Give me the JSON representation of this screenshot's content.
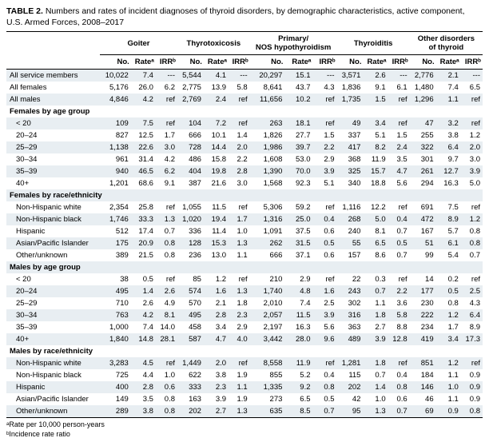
{
  "title_prefix": "TABLE 2.",
  "title_rest": " Numbers and rates of incident diagnoses of thyroid disorders, by demographic characteristics, active component, U.S. Armed Forces, 2008–2017",
  "groups": [
    "Goiter",
    "Thyrotoxicosis",
    "Primary/\nNOS hypothyroidism",
    "Thyroiditis",
    "Other disorders\nof thyroid"
  ],
  "cols": [
    "No.",
    "Rateᵃ",
    "IRRᵇ"
  ],
  "footnote_a": "ᵃRate per 10,000 person-years",
  "footnote_b": "ᵇIncidence rate ratio",
  "rows": [
    {
      "type": "data",
      "shade": 1,
      "label": "All service members",
      "cells": [
        "10,022",
        "7.4",
        "---",
        "5,544",
        "4.1",
        "---",
        "20,297",
        "15.1",
        "---",
        "3,571",
        "2.6",
        "---",
        "2,776",
        "2.1",
        "---"
      ]
    },
    {
      "type": "data",
      "shade": 0,
      "label": "All females",
      "cells": [
        "5,176",
        "26.0",
        "6.2",
        "2,775",
        "13.9",
        "5.8",
        "8,641",
        "43.7",
        "4.3",
        "1,836",
        "9.1",
        "6.1",
        "1,480",
        "7.4",
        "6.5"
      ]
    },
    {
      "type": "data",
      "shade": 1,
      "label": "All males",
      "cells": [
        "4,846",
        "4.2",
        "ref",
        "2,769",
        "2.4",
        "ref",
        "11,656",
        "10.2",
        "ref",
        "1,735",
        "1.5",
        "ref",
        "1,296",
        "1.1",
        "ref"
      ]
    },
    {
      "type": "section",
      "shade": 0,
      "label": "Females by age group"
    },
    {
      "type": "data",
      "shade": 1,
      "indent": 1,
      "label": "< 20",
      "cells": [
        "109",
        "7.5",
        "ref",
        "104",
        "7.2",
        "ref",
        "263",
        "18.1",
        "ref",
        "49",
        "3.4",
        "ref",
        "47",
        "3.2",
        "ref"
      ]
    },
    {
      "type": "data",
      "shade": 0,
      "indent": 1,
      "label": "20–24",
      "cells": [
        "827",
        "12.5",
        "1.7",
        "666",
        "10.1",
        "1.4",
        "1,826",
        "27.7",
        "1.5",
        "337",
        "5.1",
        "1.5",
        "255",
        "3.8",
        "1.2"
      ]
    },
    {
      "type": "data",
      "shade": 1,
      "indent": 1,
      "label": "25–29",
      "cells": [
        "1,138",
        "22.6",
        "3.0",
        "728",
        "14.4",
        "2.0",
        "1,986",
        "39.7",
        "2.2",
        "417",
        "8.2",
        "2.4",
        "322",
        "6.4",
        "2.0"
      ]
    },
    {
      "type": "data",
      "shade": 0,
      "indent": 1,
      "label": "30–34",
      "cells": [
        "961",
        "31.4",
        "4.2",
        "486",
        "15.8",
        "2.2",
        "1,608",
        "53.0",
        "2.9",
        "368",
        "11.9",
        "3.5",
        "301",
        "9.7",
        "3.0"
      ]
    },
    {
      "type": "data",
      "shade": 1,
      "indent": 1,
      "label": "35–39",
      "cells": [
        "940",
        "46.5",
        "6.2",
        "404",
        "19.8",
        "2.8",
        "1,390",
        "70.0",
        "3.9",
        "325",
        "15.7",
        "4.7",
        "261",
        "12.7",
        "3.9"
      ]
    },
    {
      "type": "data",
      "shade": 0,
      "indent": 1,
      "label": "40+",
      "cells": [
        "1,201",
        "68.6",
        "9.1",
        "387",
        "21.6",
        "3.0",
        "1,568",
        "92.3",
        "5.1",
        "340",
        "18.8",
        "5.6",
        "294",
        "16.3",
        "5.0"
      ]
    },
    {
      "type": "section",
      "shade": 1,
      "label": "Females by race/ethnicity"
    },
    {
      "type": "data",
      "shade": 0,
      "indent": 1,
      "label": "Non-Hispanic white",
      "cells": [
        "2,354",
        "25.8",
        "ref",
        "1,055",
        "11.5",
        "ref",
        "5,306",
        "59.2",
        "ref",
        "1,116",
        "12.2",
        "ref",
        "691",
        "7.5",
        "ref"
      ]
    },
    {
      "type": "data",
      "shade": 1,
      "indent": 1,
      "label": "Non-Hispanic black",
      "cells": [
        "1,746",
        "33.3",
        "1.3",
        "1,020",
        "19.4",
        "1.7",
        "1,316",
        "25.0",
        "0.4",
        "268",
        "5.0",
        "0.4",
        "472",
        "8.9",
        "1.2"
      ]
    },
    {
      "type": "data",
      "shade": 0,
      "indent": 1,
      "label": "Hispanic",
      "cells": [
        "512",
        "17.4",
        "0.7",
        "336",
        "11.4",
        "1.0",
        "1,091",
        "37.5",
        "0.6",
        "240",
        "8.1",
        "0.7",
        "167",
        "5.7",
        "0.8"
      ]
    },
    {
      "type": "data",
      "shade": 1,
      "indent": 1,
      "label": "Asian/Pacific Islander",
      "cells": [
        "175",
        "20.9",
        "0.8",
        "128",
        "15.3",
        "1.3",
        "262",
        "31.5",
        "0.5",
        "55",
        "6.5",
        "0.5",
        "51",
        "6.1",
        "0.8"
      ]
    },
    {
      "type": "data",
      "shade": 0,
      "indent": 1,
      "label": "Other/unknown",
      "cells": [
        "389",
        "21.5",
        "0.8",
        "236",
        "13.0",
        "1.1",
        "666",
        "37.1",
        "0.6",
        "157",
        "8.6",
        "0.7",
        "99",
        "5.4",
        "0.7"
      ]
    },
    {
      "type": "section",
      "shade": 1,
      "label": "Males by age group"
    },
    {
      "type": "data",
      "shade": 0,
      "indent": 1,
      "label": "< 20",
      "cells": [
        "38",
        "0.5",
        "ref",
        "85",
        "1.2",
        "ref",
        "210",
        "2.9",
        "ref",
        "22",
        "0.3",
        "ref",
        "14",
        "0.2",
        "ref"
      ]
    },
    {
      "type": "data",
      "shade": 1,
      "indent": 1,
      "label": "20–24",
      "cells": [
        "495",
        "1.4",
        "2.6",
        "574",
        "1.6",
        "1.3",
        "1,740",
        "4.8",
        "1.6",
        "243",
        "0.7",
        "2.2",
        "177",
        "0.5",
        "2.5"
      ]
    },
    {
      "type": "data",
      "shade": 0,
      "indent": 1,
      "label": "25–29",
      "cells": [
        "710",
        "2.6",
        "4.9",
        "570",
        "2.1",
        "1.8",
        "2,010",
        "7.4",
        "2.5",
        "302",
        "1.1",
        "3.6",
        "230",
        "0.8",
        "4.3"
      ]
    },
    {
      "type": "data",
      "shade": 1,
      "indent": 1,
      "label": "30–34",
      "cells": [
        "763",
        "4.2",
        "8.1",
        "495",
        "2.8",
        "2.3",
        "2,057",
        "11.5",
        "3.9",
        "316",
        "1.8",
        "5.8",
        "222",
        "1.2",
        "6.4"
      ]
    },
    {
      "type": "data",
      "shade": 0,
      "indent": 1,
      "label": "35–39",
      "cells": [
        "1,000",
        "7.4",
        "14.0",
        "458",
        "3.4",
        "2.9",
        "2,197",
        "16.3",
        "5.6",
        "363",
        "2.7",
        "8.8",
        "234",
        "1.7",
        "8.9"
      ]
    },
    {
      "type": "data",
      "shade": 1,
      "indent": 1,
      "label": "40+",
      "cells": [
        "1,840",
        "14.8",
        "28.1",
        "587",
        "4.7",
        "4.0",
        "3,442",
        "28.0",
        "9.6",
        "489",
        "3.9",
        "12.8",
        "419",
        "3.4",
        "17.3"
      ]
    },
    {
      "type": "section",
      "shade": 0,
      "label": "Males by race/ethnicity"
    },
    {
      "type": "data",
      "shade": 1,
      "indent": 1,
      "label": "Non-Hispanic white",
      "cells": [
        "3,283",
        "4.5",
        "ref",
        "1,449",
        "2.0",
        "ref",
        "8,558",
        "11.9",
        "ref",
        "1,281",
        "1.8",
        "ref",
        "851",
        "1.2",
        "ref"
      ]
    },
    {
      "type": "data",
      "shade": 0,
      "indent": 1,
      "label": "Non-Hispanic black",
      "cells": [
        "725",
        "4.4",
        "1.0",
        "622",
        "3.8",
        "1.9",
        "855",
        "5.2",
        "0.4",
        "115",
        "0.7",
        "0.4",
        "184",
        "1.1",
        "0.9"
      ]
    },
    {
      "type": "data",
      "shade": 1,
      "indent": 1,
      "label": "Hispanic",
      "cells": [
        "400",
        "2.8",
        "0.6",
        "333",
        "2.3",
        "1.1",
        "1,335",
        "9.2",
        "0.8",
        "202",
        "1.4",
        "0.8",
        "146",
        "1.0",
        "0.9"
      ]
    },
    {
      "type": "data",
      "shade": 0,
      "indent": 1,
      "label": "Asian/Pacific Islander",
      "cells": [
        "149",
        "3.5",
        "0.8",
        "163",
        "3.9",
        "1.9",
        "273",
        "6.5",
        "0.5",
        "42",
        "1.0",
        "0.6",
        "46",
        "1.1",
        "0.9"
      ]
    },
    {
      "type": "data",
      "shade": 1,
      "indent": 1,
      "label": "Other/unknown",
      "cells": [
        "289",
        "3.8",
        "0.8",
        "202",
        "2.7",
        "1.3",
        "635",
        "8.5",
        "0.7",
        "95",
        "1.3",
        "0.7",
        "69",
        "0.9",
        "0.8"
      ]
    }
  ]
}
